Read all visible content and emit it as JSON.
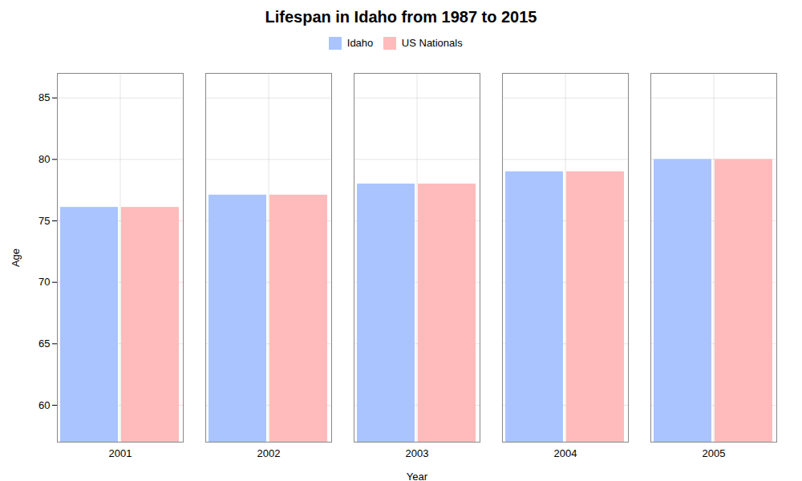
{
  "chart_data": {
    "type": "bar",
    "title": "Lifespan in Idaho from 1987 to 2015",
    "xlabel": "Year",
    "ylabel": "Age",
    "categories": [
      "2001",
      "2002",
      "2003",
      "2004",
      "2005"
    ],
    "series": [
      {
        "name": "Idaho",
        "color": "#aac4ff",
        "values": [
          76.1,
          77.1,
          78.0,
          79.0,
          80.0
        ]
      },
      {
        "name": "US Nationals",
        "color": "#ffbbbb",
        "values": [
          76.1,
          77.1,
          78.0,
          79.0,
          80.0
        ]
      }
    ],
    "ylim": [
      57,
      87
    ],
    "yticks": [
      60,
      65,
      70,
      75,
      80,
      85
    ],
    "grid": true,
    "legend": "top"
  }
}
